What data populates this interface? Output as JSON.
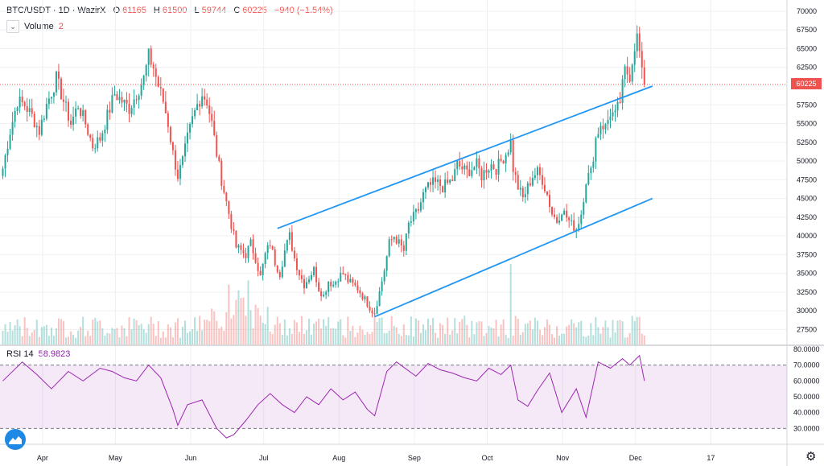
{
  "header": {
    "symbol": "BTC/USDT · 1D · WazirX",
    "open_label": "O",
    "open": "61165",
    "high_label": "H",
    "high": "61500",
    "low_label": "L",
    "low": "59744",
    "close_label": "C",
    "close": "60225",
    "change": "−940 (−1.54%)"
  },
  "volume_legend": {
    "label": "Volume",
    "value": "2"
  },
  "rsi_legend": {
    "label": "RSI 14",
    "value": "58.9823"
  },
  "last_price_tag": "60225",
  "colors": {
    "up": "#26a69a",
    "down": "#ef5350",
    "channel": "#2196f3",
    "rsi_line": "#9c27b0",
    "rsi_band": "#9c27b0"
  },
  "chart_data": [
    {
      "type": "candlestick",
      "title": "BTC/USDT · 1D · WazirX",
      "x_ticks": [
        "Apr",
        "May",
        "Jun",
        "Jul",
        "Aug",
        "Sep",
        "Oct",
        "Nov",
        "Dec",
        "17"
      ],
      "y_ticks": [
        "70000",
        "67500",
        "65000",
        "62500",
        "60000",
        "57500",
        "55000",
        "52500",
        "50000",
        "47500",
        "45000",
        "42500",
        "40000",
        "37500",
        "35000",
        "32500",
        "30000",
        "27500"
      ],
      "ylim": [
        25500,
        71500
      ],
      "last_price": 60225,
      "close_path": [
        [
          0,
          49000
        ],
        [
          3,
          54000
        ],
        [
          6,
          58000
        ],
        [
          9,
          57500
        ],
        [
          12,
          56000
        ],
        [
          15,
          54000
        ],
        [
          18,
          57500
        ],
        [
          22,
          61000
        ],
        [
          25,
          58000
        ],
        [
          28,
          55000
        ],
        [
          31,
          57500
        ],
        [
          34,
          55000
        ],
        [
          37,
          52000
        ],
        [
          40,
          53000
        ],
        [
          43,
          56000
        ],
        [
          46,
          59000
        ],
        [
          49,
          58000
        ],
        [
          52,
          57000
        ],
        [
          55,
          59000
        ],
        [
          58,
          61000
        ],
        [
          60,
          64000
        ],
        [
          62,
          62500
        ],
        [
          64,
          60000
        ],
        [
          66,
          58000
        ],
        [
          68,
          55000
        ],
        [
          70,
          51000
        ],
        [
          72,
          48000
        ],
        [
          74,
          50000
        ],
        [
          76,
          53000
        ],
        [
          78,
          55500
        ],
        [
          80,
          57500
        ],
        [
          82,
          59000
        ],
        [
          84,
          58000
        ],
        [
          86,
          55000
        ],
        [
          88,
          51000
        ],
        [
          90,
          47500
        ],
        [
          92,
          44500
        ],
        [
          94,
          41500
        ],
        [
          96,
          38500
        ],
        [
          98,
          38000
        ],
        [
          100,
          37500
        ],
        [
          102,
          39000
        ],
        [
          104,
          37000
        ],
        [
          106,
          34500
        ],
        [
          108,
          37500
        ],
        [
          110,
          39000
        ],
        [
          112,
          36500
        ],
        [
          114,
          35000
        ],
        [
          116,
          38000
        ],
        [
          118,
          40000
        ],
        [
          120,
          37000
        ],
        [
          122,
          35000
        ],
        [
          124,
          33500
        ],
        [
          126,
          34500
        ],
        [
          128,
          35500
        ],
        [
          130,
          33000
        ],
        [
          132,
          32000
        ],
        [
          134,
          34000
        ],
        [
          136,
          33500
        ],
        [
          138,
          34500
        ],
        [
          140,
          35000
        ],
        [
          142,
          34000
        ],
        [
          144,
          33500
        ],
        [
          146,
          33000
        ],
        [
          148,
          32000
        ],
        [
          150,
          31000
        ],
        [
          152,
          30000
        ],
        [
          153,
          29800
        ],
        [
          155,
          32500
        ],
        [
          157,
          35500
        ],
        [
          159,
          39000
        ],
        [
          161,
          40000
        ],
        [
          163,
          39000
        ],
        [
          165,
          38000
        ],
        [
          167,
          41500
        ],
        [
          169,
          42500
        ],
        [
          171,
          43500
        ],
        [
          173,
          45500
        ],
        [
          175,
          46500
        ],
        [
          177,
          47000
        ],
        [
          179,
          47000
        ],
        [
          181,
          46500
        ],
        [
          183,
          47000
        ],
        [
          185,
          47500
        ],
        [
          187,
          49500
        ],
        [
          189,
          49000
        ],
        [
          191,
          48500
        ],
        [
          193,
          49000
        ],
        [
          195,
          49500
        ],
        [
          197,
          48000
        ],
        [
          199,
          49000
        ],
        [
          201,
          49500
        ],
        [
          203,
          49000
        ],
        [
          205,
          50000
        ],
        [
          207,
          51000
        ],
        [
          209,
          52500
        ],
        [
          210,
          49000
        ],
        [
          212,
          46500
        ],
        [
          214,
          45000
        ],
        [
          216,
          46500
        ],
        [
          218,
          48000
        ],
        [
          220,
          48500
        ],
        [
          222,
          47500
        ],
        [
          224,
          45500
        ],
        [
          226,
          43000
        ],
        [
          228,
          42000
        ],
        [
          230,
          43500
        ],
        [
          232,
          42500
        ],
        [
          234,
          41500
        ],
        [
          236,
          41000
        ],
        [
          238,
          43000
        ],
        [
          240,
          47500
        ],
        [
          242,
          48500
        ],
        [
          244,
          53000
        ],
        [
          246,
          55000
        ],
        [
          248,
          54500
        ],
        [
          250,
          56500
        ],
        [
          252,
          56000
        ],
        [
          254,
          58000
        ],
        [
          256,
          62000
        ],
        [
          258,
          61500
        ],
        [
          259,
          63500
        ],
        [
          260,
          65500
        ],
        [
          261,
          66500
        ],
        [
          262,
          64500
        ],
        [
          263,
          61500
        ],
        [
          264,
          60225
        ]
      ],
      "channel_upper": [
        [
          113,
          41000
        ],
        [
          264,
          60000
        ]
      ],
      "channel_lower": [
        [
          153,
          29200
        ],
        [
          264,
          45000
        ]
      ]
    },
    {
      "type": "bar",
      "title": "Volume",
      "value": 2
    },
    {
      "type": "line",
      "title": "RSI 14",
      "value": 58.9823,
      "y_ticks": [
        "80.0000",
        "70.0000",
        "60.0000",
        "50.0000",
        "40.0000",
        "30.0000"
      ],
      "ylim": [
        20,
        82
      ],
      "band": [
        30,
        70
      ],
      "x": [
        0,
        8,
        14,
        20,
        27,
        33,
        40,
        45,
        50,
        55,
        60,
        65,
        70,
        72,
        76,
        82,
        88,
        92,
        95,
        100,
        105,
        110,
        115,
        120,
        125,
        130,
        135,
        140,
        145,
        150,
        153,
        158,
        162,
        170,
        175,
        180,
        185,
        190,
        195,
        200,
        205,
        209,
        212,
        216,
        220,
        225,
        230,
        236,
        240,
        245,
        250,
        255,
        258,
        262,
        264
      ],
      "y": [
        60,
        72,
        64,
        55,
        66,
        60,
        68,
        66,
        62,
        60,
        70,
        62,
        42,
        32,
        45,
        48,
        30,
        24,
        26,
        35,
        45,
        52,
        45,
        40,
        50,
        45,
        55,
        48,
        53,
        42,
        38,
        66,
        72,
        63,
        71,
        67,
        65,
        62,
        60,
        68,
        64,
        70,
        48,
        44,
        54,
        65,
        40,
        55,
        37,
        72,
        68,
        74,
        70,
        76,
        60
      ]
    }
  ]
}
